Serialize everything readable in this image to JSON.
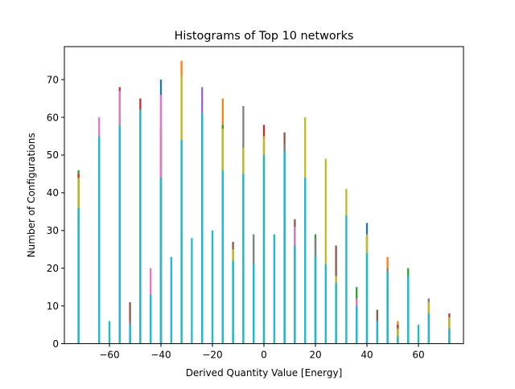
{
  "chart_data": {
    "type": "bar",
    "title": "Histograms of Top 10 networks",
    "xlabel": "Derived Quantity Value [Energy]",
    "ylabel": "Number of Configurations",
    "xlim": [
      -77.5,
      77.5
    ],
    "ylim": [
      0,
      78.75
    ],
    "xticks": [
      -60,
      -40,
      -20,
      0,
      20,
      40,
      60
    ],
    "yticks": [
      0,
      10,
      20,
      30,
      40,
      50,
      60,
      70
    ],
    "xtick_labels": [
      "−60",
      "−40",
      "−20",
      "0",
      "20",
      "40",
      "60"
    ],
    "ytick_labels": [
      "0",
      "10",
      "20",
      "30",
      "40",
      "50",
      "60",
      "70"
    ],
    "grid": false,
    "legend": "none",
    "series": [
      {
        "color": "#1f77b4",
        "values": [
          [
            -40,
            70
          ],
          [
            40,
            32
          ]
        ]
      },
      {
        "color": "#ff7f0e",
        "values": [
          [
            -32,
            75
          ],
          [
            -16,
            65
          ],
          [
            48,
            23
          ],
          [
            52,
            6
          ]
        ]
      },
      {
        "color": "#2ca02c",
        "values": [
          [
            -72,
            46
          ],
          [
            -16,
            58
          ],
          [
            20,
            29
          ],
          [
            36,
            15
          ],
          [
            56,
            20
          ]
        ]
      },
      {
        "color": "#d62728",
        "values": [
          [
            -72,
            45
          ],
          [
            -56,
            68
          ],
          [
            -48,
            65
          ],
          [
            0,
            58
          ],
          [
            52,
            5
          ],
          [
            72,
            8
          ]
        ]
      },
      {
        "color": "#9467bd",
        "values": [
          [
            -24,
            68
          ],
          [
            64,
            12
          ]
        ]
      },
      {
        "color": "#8c564b",
        "values": [
          [
            -52,
            11
          ],
          [
            -40,
            57
          ],
          [
            -12,
            27
          ],
          [
            8,
            56
          ],
          [
            12,
            33
          ],
          [
            28,
            26
          ],
          [
            44,
            9
          ],
          [
            72,
            7
          ]
        ]
      },
      {
        "color": "#e377c2",
        "values": [
          [
            -64,
            60
          ],
          [
            -56,
            67
          ],
          [
            -44,
            20
          ],
          [
            -40,
            66
          ],
          [
            12,
            31
          ],
          [
            36,
            12
          ],
          [
            64,
            11
          ]
        ]
      },
      {
        "color": "#7f7f7f",
        "values": [
          [
            -52,
            6
          ],
          [
            -8,
            63
          ],
          [
            -4,
            29
          ],
          [
            8,
            53
          ],
          [
            20,
            28
          ],
          [
            48,
            20
          ],
          [
            52,
            4
          ]
        ]
      },
      {
        "color": "#bcbd22",
        "values": [
          [
            -72,
            44
          ],
          [
            -32,
            71
          ],
          [
            -16,
            57
          ],
          [
            -12,
            25
          ],
          [
            -8,
            52
          ],
          [
            0,
            55
          ],
          [
            16,
            60
          ],
          [
            24,
            49
          ],
          [
            28,
            18
          ],
          [
            32,
            41
          ],
          [
            40,
            29
          ],
          [
            48,
            19
          ],
          [
            52,
            4
          ],
          [
            64,
            11
          ],
          [
            72,
            7
          ]
        ]
      },
      {
        "color": "#17becf",
        "values": [
          [
            -72,
            36
          ],
          [
            -64,
            55
          ],
          [
            -60,
            6
          ],
          [
            -56,
            58
          ],
          [
            -52,
            5
          ],
          [
            -48,
            62
          ],
          [
            -44,
            13
          ],
          [
            -40,
            44
          ],
          [
            -36,
            23
          ],
          [
            -32,
            54
          ],
          [
            -28,
            28
          ],
          [
            -24,
            61
          ],
          [
            -20,
            30
          ],
          [
            -16,
            46
          ],
          [
            -12,
            22
          ],
          [
            -8,
            45
          ],
          [
            -4,
            21
          ],
          [
            0,
            50
          ],
          [
            4,
            29
          ],
          [
            8,
            51
          ],
          [
            12,
            26
          ],
          [
            16,
            44
          ],
          [
            20,
            23
          ],
          [
            24,
            21
          ],
          [
            28,
            16
          ],
          [
            32,
            34
          ],
          [
            36,
            10
          ],
          [
            40,
            24
          ],
          [
            44,
            6
          ],
          [
            48,
            19
          ],
          [
            52,
            2
          ],
          [
            56,
            18
          ],
          [
            60,
            5
          ],
          [
            64,
            8
          ],
          [
            72,
            4
          ]
        ]
      }
    ]
  }
}
